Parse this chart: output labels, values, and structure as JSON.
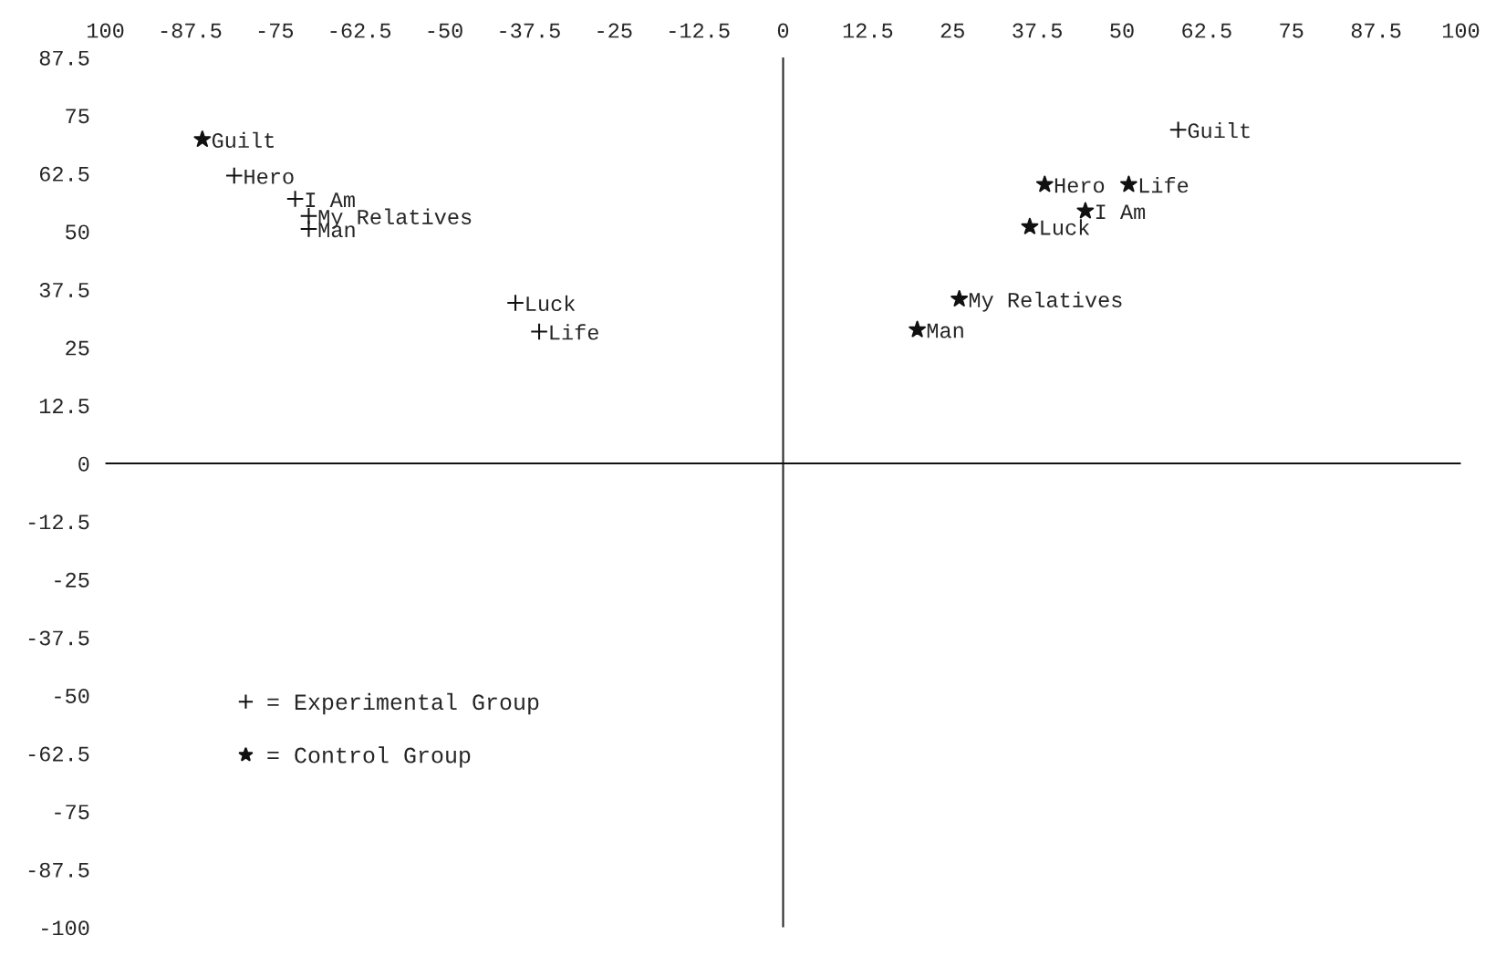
{
  "chart_data": {
    "type": "scatter",
    "xlim": [
      -100,
      100
    ],
    "ylim": [
      -100,
      87.5
    ],
    "xticks": [
      {
        "value": -100,
        "label": "100"
      },
      -87.5,
      -75,
      -62.5,
      -50,
      -37.5,
      -25,
      -12.5,
      0,
      12.5,
      25,
      37.5,
      50,
      62.5,
      75,
      87.5,
      100
    ],
    "yticks": [
      -100,
      -87.5,
      -75,
      -62.5,
      -50,
      -37.5,
      -25,
      -12.5,
      0,
      12.5,
      25,
      37.5,
      50,
      62.5,
      75,
      87.5
    ],
    "grid": false,
    "legend": "bottom left",
    "ref_lines": [
      {
        "axis": "x",
        "value": 0,
        "color": "#2a2a2a"
      },
      {
        "axis": "y",
        "value": 0,
        "color": "#111111"
      }
    ],
    "series": [
      {
        "name": "= Experimental Group",
        "color": "#111111",
        "marker": "cross",
        "x": [
          -81,
          -72,
          -70,
          -70,
          -39.5,
          -36,
          58.3
        ],
        "values": [
          62,
          57,
          53.3,
          50.5,
          34.6,
          28.4,
          71.9
        ]
      },
      {
        "name": "= Control Group",
        "color": "#111111",
        "marker": "star",
        "x": [
          -85.7,
          38.6,
          51,
          44.6,
          36.4,
          26,
          19.8
        ],
        "values": [
          69.8,
          60.1,
          60.1,
          54.4,
          51,
          35.4,
          28.8
        ]
      }
    ],
    "annotations": [
      {
        "text": "Hero",
        "x": -81,
        "y": 62
      },
      {
        "text": "I Am",
        "x": -72,
        "y": 57
      },
      {
        "text": "My Relatives",
        "x": -70,
        "y": 53.3
      },
      {
        "text": "Man",
        "x": -70,
        "y": 50.5
      },
      {
        "text": "Luck",
        "x": -39.5,
        "y": 34.6
      },
      {
        "text": "Life",
        "x": -36,
        "y": 28.4
      },
      {
        "text": "Guilt",
        "x": 58.3,
        "y": 71.9
      },
      {
        "text": "Guilt",
        "x": -85.7,
        "y": 69.8
      },
      {
        "text": "Hero",
        "x": 38.6,
        "y": 60.1
      },
      {
        "text": "Life",
        "x": 51,
        "y": 60.1
      },
      {
        "text": "I Am",
        "x": 44.6,
        "y": 54.4
      },
      {
        "text": "Luck",
        "x": 36.4,
        "y": 51
      },
      {
        "text": "My Relatives",
        "x": 26,
        "y": 35.4
      },
      {
        "text": "Man",
        "x": 19.8,
        "y": 28.8
      }
    ]
  }
}
